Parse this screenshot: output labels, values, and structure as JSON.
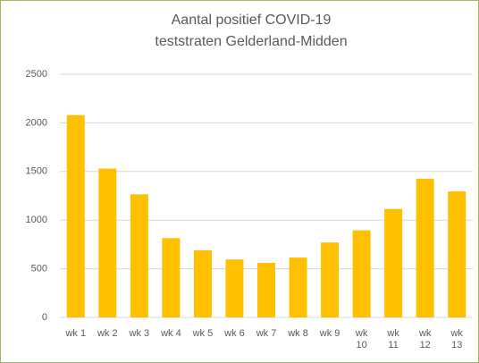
{
  "chart_data": {
    "type": "bar",
    "title": [
      "Aantal positief COVID-19",
      "teststraten Gelderland-Midden"
    ],
    "categories": [
      "wk 1",
      "wk 2",
      "wk 3",
      "wk 4",
      "wk 5",
      "wk 6",
      "wk 7",
      "wk 8",
      "wk 9",
      "wk 10",
      "wk 11",
      "wk 12",
      "wk 13"
    ],
    "values": [
      2080,
      1530,
      1265,
      815,
      690,
      595,
      560,
      615,
      770,
      895,
      1115,
      1425,
      1295
    ],
    "color": "#ffc000",
    "ylim": [
      0,
      2500
    ],
    "yticks": [
      0,
      500,
      1000,
      1500,
      2000,
      2500
    ],
    "grid": true
  }
}
